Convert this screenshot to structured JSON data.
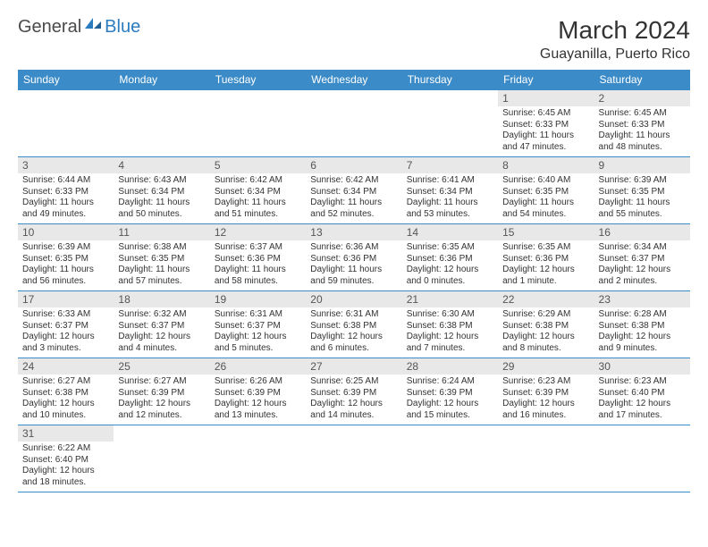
{
  "logo": {
    "text1": "General",
    "text2": "Blue"
  },
  "title": "March 2024",
  "location": "Guayanilla, Puerto Rico",
  "colors": {
    "header_bg": "#3b8bc8",
    "header_text": "#ffffff",
    "daynum_bg": "#e8e8e8",
    "border": "#3b8bc8",
    "text": "#333333",
    "logo_blue": "#2b7bbf"
  },
  "weekdays": [
    "Sunday",
    "Monday",
    "Tuesday",
    "Wednesday",
    "Thursday",
    "Friday",
    "Saturday"
  ],
  "first_weekday_index": 5,
  "days": [
    {
      "n": 1,
      "sunrise": "6:45 AM",
      "sunset": "6:33 PM",
      "daylight": "11 hours and 47 minutes."
    },
    {
      "n": 2,
      "sunrise": "6:45 AM",
      "sunset": "6:33 PM",
      "daylight": "11 hours and 48 minutes."
    },
    {
      "n": 3,
      "sunrise": "6:44 AM",
      "sunset": "6:33 PM",
      "daylight": "11 hours and 49 minutes."
    },
    {
      "n": 4,
      "sunrise": "6:43 AM",
      "sunset": "6:34 PM",
      "daylight": "11 hours and 50 minutes."
    },
    {
      "n": 5,
      "sunrise": "6:42 AM",
      "sunset": "6:34 PM",
      "daylight": "11 hours and 51 minutes."
    },
    {
      "n": 6,
      "sunrise": "6:42 AM",
      "sunset": "6:34 PM",
      "daylight": "11 hours and 52 minutes."
    },
    {
      "n": 7,
      "sunrise": "6:41 AM",
      "sunset": "6:34 PM",
      "daylight": "11 hours and 53 minutes."
    },
    {
      "n": 8,
      "sunrise": "6:40 AM",
      "sunset": "6:35 PM",
      "daylight": "11 hours and 54 minutes."
    },
    {
      "n": 9,
      "sunrise": "6:39 AM",
      "sunset": "6:35 PM",
      "daylight": "11 hours and 55 minutes."
    },
    {
      "n": 10,
      "sunrise": "6:39 AM",
      "sunset": "6:35 PM",
      "daylight": "11 hours and 56 minutes."
    },
    {
      "n": 11,
      "sunrise": "6:38 AM",
      "sunset": "6:35 PM",
      "daylight": "11 hours and 57 minutes."
    },
    {
      "n": 12,
      "sunrise": "6:37 AM",
      "sunset": "6:36 PM",
      "daylight": "11 hours and 58 minutes."
    },
    {
      "n": 13,
      "sunrise": "6:36 AM",
      "sunset": "6:36 PM",
      "daylight": "11 hours and 59 minutes."
    },
    {
      "n": 14,
      "sunrise": "6:35 AM",
      "sunset": "6:36 PM",
      "daylight": "12 hours and 0 minutes."
    },
    {
      "n": 15,
      "sunrise": "6:35 AM",
      "sunset": "6:36 PM",
      "daylight": "12 hours and 1 minute."
    },
    {
      "n": 16,
      "sunrise": "6:34 AM",
      "sunset": "6:37 PM",
      "daylight": "12 hours and 2 minutes."
    },
    {
      "n": 17,
      "sunrise": "6:33 AM",
      "sunset": "6:37 PM",
      "daylight": "12 hours and 3 minutes."
    },
    {
      "n": 18,
      "sunrise": "6:32 AM",
      "sunset": "6:37 PM",
      "daylight": "12 hours and 4 minutes."
    },
    {
      "n": 19,
      "sunrise": "6:31 AM",
      "sunset": "6:37 PM",
      "daylight": "12 hours and 5 minutes."
    },
    {
      "n": 20,
      "sunrise": "6:31 AM",
      "sunset": "6:38 PM",
      "daylight": "12 hours and 6 minutes."
    },
    {
      "n": 21,
      "sunrise": "6:30 AM",
      "sunset": "6:38 PM",
      "daylight": "12 hours and 7 minutes."
    },
    {
      "n": 22,
      "sunrise": "6:29 AM",
      "sunset": "6:38 PM",
      "daylight": "12 hours and 8 minutes."
    },
    {
      "n": 23,
      "sunrise": "6:28 AM",
      "sunset": "6:38 PM",
      "daylight": "12 hours and 9 minutes."
    },
    {
      "n": 24,
      "sunrise": "6:27 AM",
      "sunset": "6:38 PM",
      "daylight": "12 hours and 10 minutes."
    },
    {
      "n": 25,
      "sunrise": "6:27 AM",
      "sunset": "6:39 PM",
      "daylight": "12 hours and 12 minutes."
    },
    {
      "n": 26,
      "sunrise": "6:26 AM",
      "sunset": "6:39 PM",
      "daylight": "12 hours and 13 minutes."
    },
    {
      "n": 27,
      "sunrise": "6:25 AM",
      "sunset": "6:39 PM",
      "daylight": "12 hours and 14 minutes."
    },
    {
      "n": 28,
      "sunrise": "6:24 AM",
      "sunset": "6:39 PM",
      "daylight": "12 hours and 15 minutes."
    },
    {
      "n": 29,
      "sunrise": "6:23 AM",
      "sunset": "6:39 PM",
      "daylight": "12 hours and 16 minutes."
    },
    {
      "n": 30,
      "sunrise": "6:23 AM",
      "sunset": "6:40 PM",
      "daylight": "12 hours and 17 minutes."
    },
    {
      "n": 31,
      "sunrise": "6:22 AM",
      "sunset": "6:40 PM",
      "daylight": "12 hours and 18 minutes."
    }
  ],
  "labels": {
    "sunrise": "Sunrise:",
    "sunset": "Sunset:",
    "daylight": "Daylight:"
  }
}
